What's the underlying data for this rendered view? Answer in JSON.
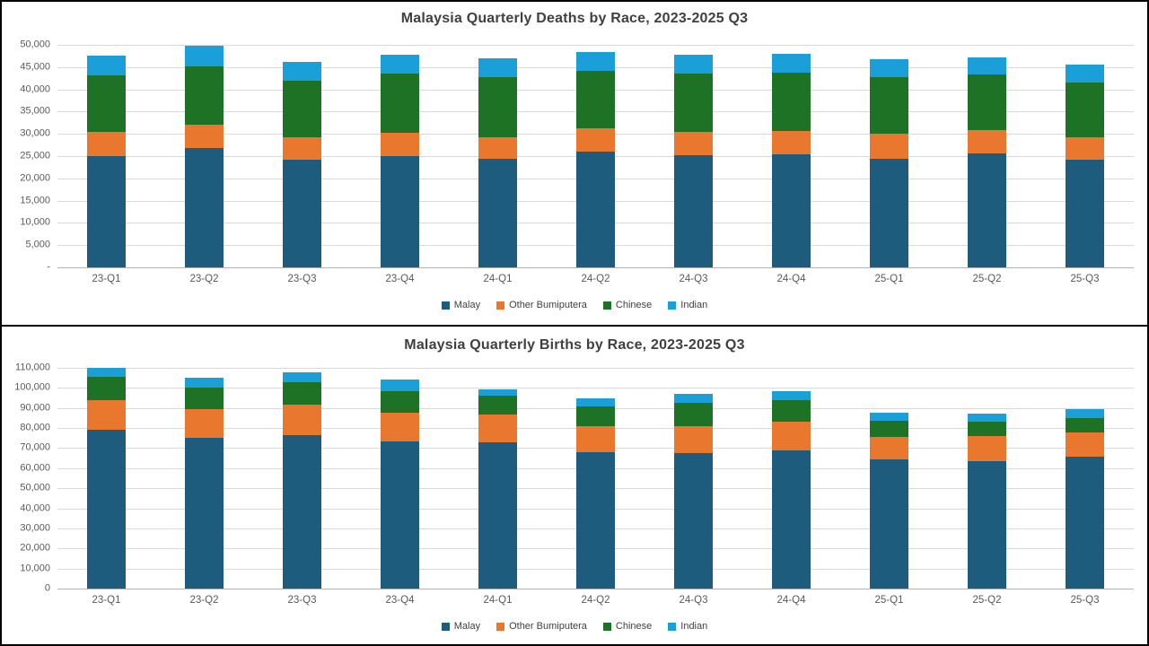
{
  "colors": {
    "malay": "#1d5c7c",
    "other_bumiputera": "#e9772e",
    "chinese": "#1d7226",
    "indian": "#1b9fd9",
    "gridline": "#d9d9d9",
    "title_text": "#404040",
    "tick_text": "#595959",
    "panel_border": "#000000"
  },
  "chart_data": [
    {
      "type": "bar",
      "stacked": true,
      "title": "Malaysia Quarterly Deaths by Race, 2023-2025 Q3",
      "categories": [
        "23-Q1",
        "23-Q2",
        "23-Q3",
        "23-Q4",
        "24-Q1",
        "24-Q2",
        "24-Q3",
        "24-Q4",
        "25-Q1",
        "25-Q2",
        "25-Q3"
      ],
      "series": [
        {
          "name": "Malay",
          "color": "#1d5c7c",
          "values": [
            25000,
            26800,
            24200,
            25000,
            24400,
            26100,
            25200,
            25400,
            24500,
            25600,
            24300
          ]
        },
        {
          "name": "Other Bumiputera",
          "color": "#e9772e",
          "values": [
            5500,
            5300,
            5100,
            5300,
            4900,
            5200,
            5300,
            5200,
            5500,
            5200,
            4900
          ]
        },
        {
          "name": "Chinese",
          "color": "#1d7226",
          "values": [
            12700,
            13100,
            12700,
            13200,
            13400,
            12800,
            13100,
            13200,
            12700,
            12500,
            12400
          ]
        },
        {
          "name": "Indian",
          "color": "#1b9fd9",
          "values": [
            4300,
            4700,
            4100,
            4300,
            4200,
            4300,
            4200,
            4100,
            4100,
            3900,
            3900
          ]
        }
      ],
      "ylim": [
        0,
        50000
      ],
      "ytick_step": 5000,
      "ytick_labels": [
        "50,000",
        "45,000",
        "40,000",
        "35,000",
        "30,000",
        "25,000",
        "20,000",
        "15,000",
        "10,000",
        "5,000",
        "-"
      ],
      "xlabel": "",
      "ylabel": "",
      "grid": true,
      "legend_position": "bottom",
      "legend_entries": [
        "Malay",
        "Other Bumiputera",
        "Chinese",
        "Indian"
      ]
    },
    {
      "type": "bar",
      "stacked": true,
      "title": "Malaysia Quarterly Births by Race, 2023-2025 Q3",
      "categories": [
        "23-Q1",
        "23-Q2",
        "23-Q3",
        "23-Q4",
        "24-Q1",
        "24-Q2",
        "24-Q3",
        "24-Q4",
        "25-Q1",
        "25-Q2",
        "25-Q3"
      ],
      "series": [
        {
          "name": "Malay",
          "color": "#1d5c7c",
          "values": [
            79000,
            75100,
            76300,
            73300,
            72900,
            68100,
            67700,
            69000,
            64300,
            63600,
            65900
          ]
        },
        {
          "name": "Other Bumiputera",
          "color": "#e9772e",
          "values": [
            14800,
            14200,
            15400,
            14500,
            13900,
            13000,
            13200,
            14300,
            11500,
            12300,
            12000
          ]
        },
        {
          "name": "Chinese",
          "color": "#1d7226",
          "values": [
            11600,
            10900,
            11100,
            10500,
            9400,
            9700,
            11500,
            10500,
            8000,
            7200,
            7000
          ]
        },
        {
          "name": "Indian",
          "color": "#1b9fd9",
          "values": [
            4600,
            4900,
            4900,
            6000,
            3300,
            3800,
            4500,
            4500,
            3700,
            4200,
            4500
          ]
        }
      ],
      "ylim": [
        0,
        110000
      ],
      "ytick_step": 10000,
      "ytick_labels": [
        "110,000",
        "100,000",
        "90,000",
        "80,000",
        "70,000",
        "60,000",
        "50,000",
        "40,000",
        "30,000",
        "20,000",
        "10,000",
        "0"
      ],
      "xlabel": "",
      "ylabel": "",
      "grid": true,
      "legend_position": "bottom",
      "legend_entries": [
        "Malay",
        "Other Bumiputera",
        "Chinese",
        "Indian"
      ]
    }
  ]
}
